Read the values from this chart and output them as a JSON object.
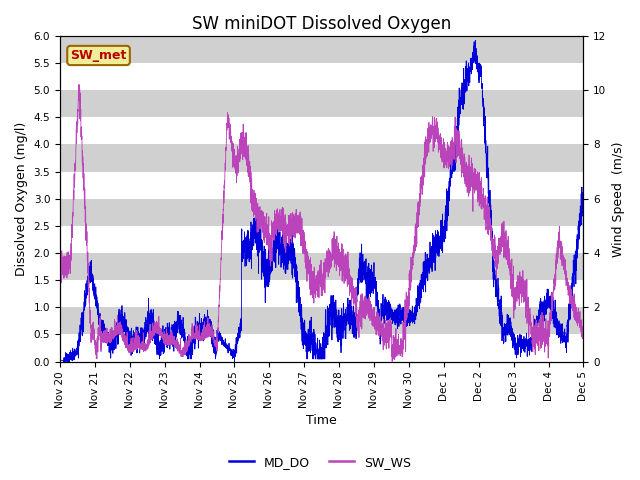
{
  "title": "SW miniDOT Dissolved Oxygen",
  "ylabel_left": "Dissolved Oxygen (mg/l)",
  "ylabel_right": "Wind Speed  (m/s)",
  "xlabel": "Time",
  "ylim_left": [
    0,
    6.0
  ],
  "ylim_right": [
    0,
    12
  ],
  "yticks_left": [
    0.0,
    0.5,
    1.0,
    1.5,
    2.0,
    2.5,
    3.0,
    3.5,
    4.0,
    4.5,
    5.0,
    5.5,
    6.0
  ],
  "yticks_right": [
    0,
    2,
    4,
    6,
    8,
    10,
    12
  ],
  "line1_color": "#0000dd",
  "line2_color": "#bb44bb",
  "line1_label": "MD_DO",
  "line2_label": "SW_WS",
  "annotation_text": "SW_met",
  "annotation_color": "#bb0000",
  "annotation_bg": "#eeee99",
  "annotation_border": "#996600",
  "plot_bg": "#e8e8e8",
  "band_color": "#d0d0d0",
  "title_fontsize": 12,
  "axis_fontsize": 9,
  "tick_fontsize": 7.5,
  "legend_fontsize": 9
}
